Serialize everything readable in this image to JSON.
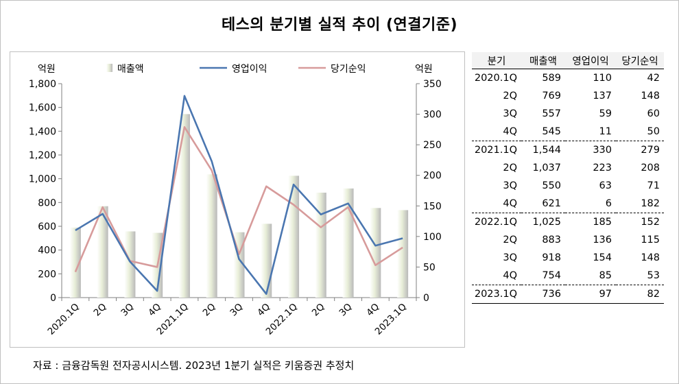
{
  "title": "테스의 분기별 실적 추이 (연결기준)",
  "source": "자료 : 금융감독원 전자공시시스템. 2023년 1분기 실적은 키움증권 추정치",
  "colors": {
    "revenue_bar": "#e8eed8",
    "op_profit": "#4a76b0",
    "net_profit": "#d79b9b"
  },
  "chart_data": {
    "type": "bar",
    "categories": [
      "2020.1Q",
      "2Q",
      "3Q",
      "4Q",
      "2021.1Q",
      "2Q",
      "3Q",
      "4Q",
      "2022.1Q",
      "2Q",
      "3Q",
      "4Q",
      "2023.1Q"
    ],
    "left_axis": {
      "unit": "억원",
      "ylim": [
        0,
        1800
      ],
      "ticks": [
        "0",
        "200",
        "400",
        "600",
        "800",
        "1,000",
        "1,200",
        "1,400",
        "1,600",
        "1,800"
      ]
    },
    "right_axis": {
      "unit": "억원",
      "ylim": [
        0,
        350
      ],
      "ticks": [
        "0",
        "50",
        "100",
        "150",
        "200",
        "250",
        "300",
        "350"
      ]
    },
    "legend": [
      "매출액",
      "영업이익",
      "당기순익"
    ],
    "series": [
      {
        "name": "매출액",
        "type": "bar",
        "axis": "left",
        "values": [
          589,
          769,
          557,
          545,
          1544,
          1037,
          550,
          621,
          1025,
          883,
          918,
          754,
          736
        ]
      },
      {
        "name": "영업이익",
        "type": "line",
        "axis": "right",
        "values": [
          110,
          137,
          59,
          11,
          330,
          223,
          63,
          6,
          185,
          136,
          154,
          85,
          97
        ]
      },
      {
        "name": "당기순익",
        "type": "line",
        "axis": "right",
        "values": [
          42,
          148,
          60,
          50,
          279,
          208,
          71,
          182,
          152,
          115,
          148,
          53,
          82
        ]
      }
    ],
    "grid": false,
    "legend_position": "top"
  },
  "table": {
    "headers": [
      "분기",
      "매출액",
      "영업이익",
      "당기순익"
    ],
    "rows": [
      [
        "2020.1Q",
        "589",
        "110",
        "42"
      ],
      [
        "2Q",
        "769",
        "137",
        "148"
      ],
      [
        "3Q",
        "557",
        "59",
        "60"
      ],
      [
        "4Q",
        "545",
        "11",
        "50"
      ],
      [
        "2021.1Q",
        "1,544",
        "330",
        "279"
      ],
      [
        "2Q",
        "1,037",
        "223",
        "208"
      ],
      [
        "3Q",
        "550",
        "63",
        "71"
      ],
      [
        "4Q",
        "621",
        "6",
        "182"
      ],
      [
        "2022.1Q",
        "1,025",
        "185",
        "152"
      ],
      [
        "2Q",
        "883",
        "136",
        "115"
      ],
      [
        "3Q",
        "918",
        "154",
        "148"
      ],
      [
        "4Q",
        "754",
        "85",
        "53"
      ],
      [
        "2023.1Q",
        "736",
        "97",
        "82"
      ]
    ]
  }
}
